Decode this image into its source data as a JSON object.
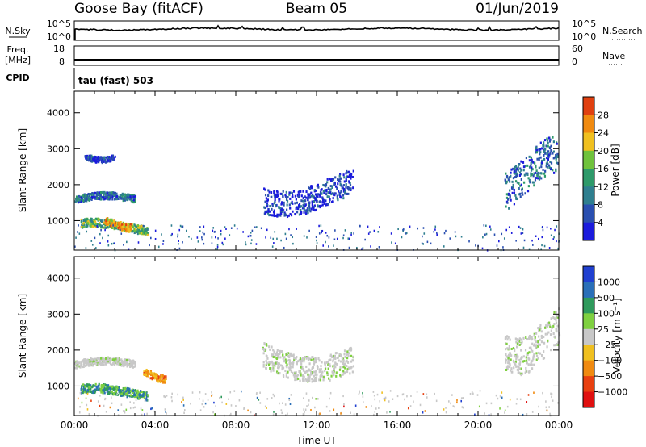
{
  "header": {
    "station": "Goose Bay (fitACF)",
    "beam": "Beam 05",
    "date": "01/Jun/2019"
  },
  "strips": {
    "nsky": {
      "left_label": "N.Sky",
      "right_label": "N.Search",
      "left_ticks": [
        "10^5",
        "10^0"
      ],
      "right_ticks": [
        "10^5",
        "10^0"
      ]
    },
    "freq": {
      "left_label_line1": "Freq.",
      "left_label_line2": "[MHz]",
      "right_label": "Nave",
      "left_ticks": [
        "18",
        "8"
      ],
      "right_ticks": [
        "60",
        "0"
      ]
    },
    "cpid": {
      "left_label": "CPID",
      "mode_text": "tau (fast) 503"
    }
  },
  "chart_data": [
    {
      "type": "heatmap",
      "quantity": "Power",
      "ylabel": "Slant Range [km]",
      "ylim": [
        180,
        4600
      ],
      "yticks": [
        1000,
        2000,
        3000,
        4000
      ],
      "xlim": [
        0,
        24
      ],
      "colorbar": {
        "label": "Power [dB]",
        "range": [
          0,
          32
        ],
        "tick_labels": [
          "4",
          "8",
          "12",
          "16",
          "20",
          "24",
          "28"
        ],
        "colors": [
          "#1b1bdc",
          "#2a4fb0",
          "#2f7f8f",
          "#2e9a6a",
          "#6fc23c",
          "#f0c020",
          "#f08a10",
          "#e04010"
        ]
      },
      "echo_regions": [
        {
          "t": [
            0.0,
            3.0
          ],
          "range": [
            1500,
            1750
          ],
          "intensity": "moderate"
        },
        {
          "t": [
            0.3,
            3.6
          ],
          "range": [
            700,
            1000
          ],
          "intensity": "strong"
        },
        {
          "t": [
            1.5,
            2.8
          ],
          "range": [
            800,
            1050
          ],
          "intensity": "very strong"
        },
        {
          "t": [
            0.5,
            2.0
          ],
          "range": [
            2700,
            2900
          ],
          "intensity": "weak"
        },
        {
          "t": [
            9.3,
            13.8
          ],
          "range": [
            1400,
            2300
          ],
          "intensity": "weak"
        },
        {
          "t": [
            21.3,
            24.0
          ],
          "range": [
            1700,
            3000
          ],
          "intensity": "moderate"
        }
      ]
    },
    {
      "type": "heatmap",
      "quantity": "Velocity",
      "ylabel": "Slant Range [km]",
      "xlabel": "Time UT",
      "ylim": [
        180,
        4600
      ],
      "yticks": [
        1000,
        2000,
        3000,
        4000
      ],
      "xlim": [
        0,
        24
      ],
      "x_tick_labels": [
        "00:00",
        "04:00",
        "08:00",
        "12:00",
        "16:00",
        "20:00",
        "00:00"
      ],
      "colorbar": {
        "label": "Velocity [m s⁻¹]",
        "tick_labels": [
          "1000",
          "500",
          "100",
          "25",
          "−25",
          "−100",
          "−500",
          "−1000"
        ],
        "colors": [
          "#2040d0",
          "#2a6fb8",
          "#2f9a5c",
          "#7fd040",
          "#c8c8c8",
          "#f0c020",
          "#f08a10",
          "#e84010",
          "#e01010"
        ]
      },
      "echo_regions": [
        {
          "t": [
            0.0,
            3.0
          ],
          "range": [
            1500,
            1750
          ],
          "dominant": "ground scatter"
        },
        {
          "t": [
            0.3,
            3.6
          ],
          "range": [
            700,
            1000
          ],
          "dominant": "positive 100-500"
        },
        {
          "t": [
            3.4,
            4.5
          ],
          "range": [
            1200,
            1450
          ],
          "dominant": "negative -100 to -500"
        },
        {
          "t": [
            9.3,
            13.8
          ],
          "range": [
            1400,
            2300
          ],
          "dominant": "ground scatter"
        },
        {
          "t": [
            21.3,
            24.0
          ],
          "range": [
            1700,
            3000
          ],
          "dominant": "ground scatter"
        }
      ]
    }
  ]
}
